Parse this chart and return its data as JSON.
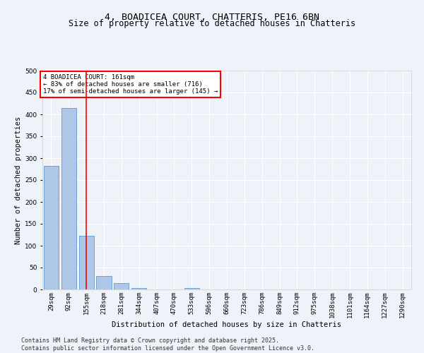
{
  "title": "4, BOADICEA COURT, CHATTERIS, PE16 6BN",
  "subtitle": "Size of property relative to detached houses in Chatteris",
  "xlabel": "Distribution of detached houses by size in Chatteris",
  "ylabel": "Number of detached properties",
  "categories": [
    "29sqm",
    "92sqm",
    "155sqm",
    "218sqm",
    "281sqm",
    "344sqm",
    "407sqm",
    "470sqm",
    "533sqm",
    "596sqm",
    "660sqm",
    "723sqm",
    "786sqm",
    "849sqm",
    "912sqm",
    "975sqm",
    "1038sqm",
    "1101sqm",
    "1164sqm",
    "1227sqm",
    "1290sqm"
  ],
  "values": [
    283,
    415,
    123,
    30,
    15,
    3,
    0,
    0,
    4,
    0,
    0,
    0,
    0,
    0,
    0,
    0,
    0,
    0,
    0,
    0,
    0
  ],
  "bar_color": "#aec6e8",
  "bar_edge_color": "#5b9bd5",
  "red_line_x": 2,
  "annotation_text": "4 BOADICEA COURT: 161sqm\n← 83% of detached houses are smaller (716)\n17% of semi-detached houses are larger (145) →",
  "annotation_box_color": "white",
  "annotation_box_edge_color": "red",
  "vline_color": "red",
  "background_color": "#eef2f9",
  "grid_color": "white",
  "footer_line1": "Contains HM Land Registry data © Crown copyright and database right 2025.",
  "footer_line2": "Contains public sector information licensed under the Open Government Licence v3.0.",
  "ylim": [
    0,
    500
  ],
  "yticks": [
    0,
    50,
    100,
    150,
    200,
    250,
    300,
    350,
    400,
    450,
    500
  ],
  "title_fontsize": 9.5,
  "subtitle_fontsize": 8.5,
  "axis_label_fontsize": 7.5,
  "tick_fontsize": 6.5,
  "annotation_fontsize": 6.5,
  "footer_fontsize": 6
}
